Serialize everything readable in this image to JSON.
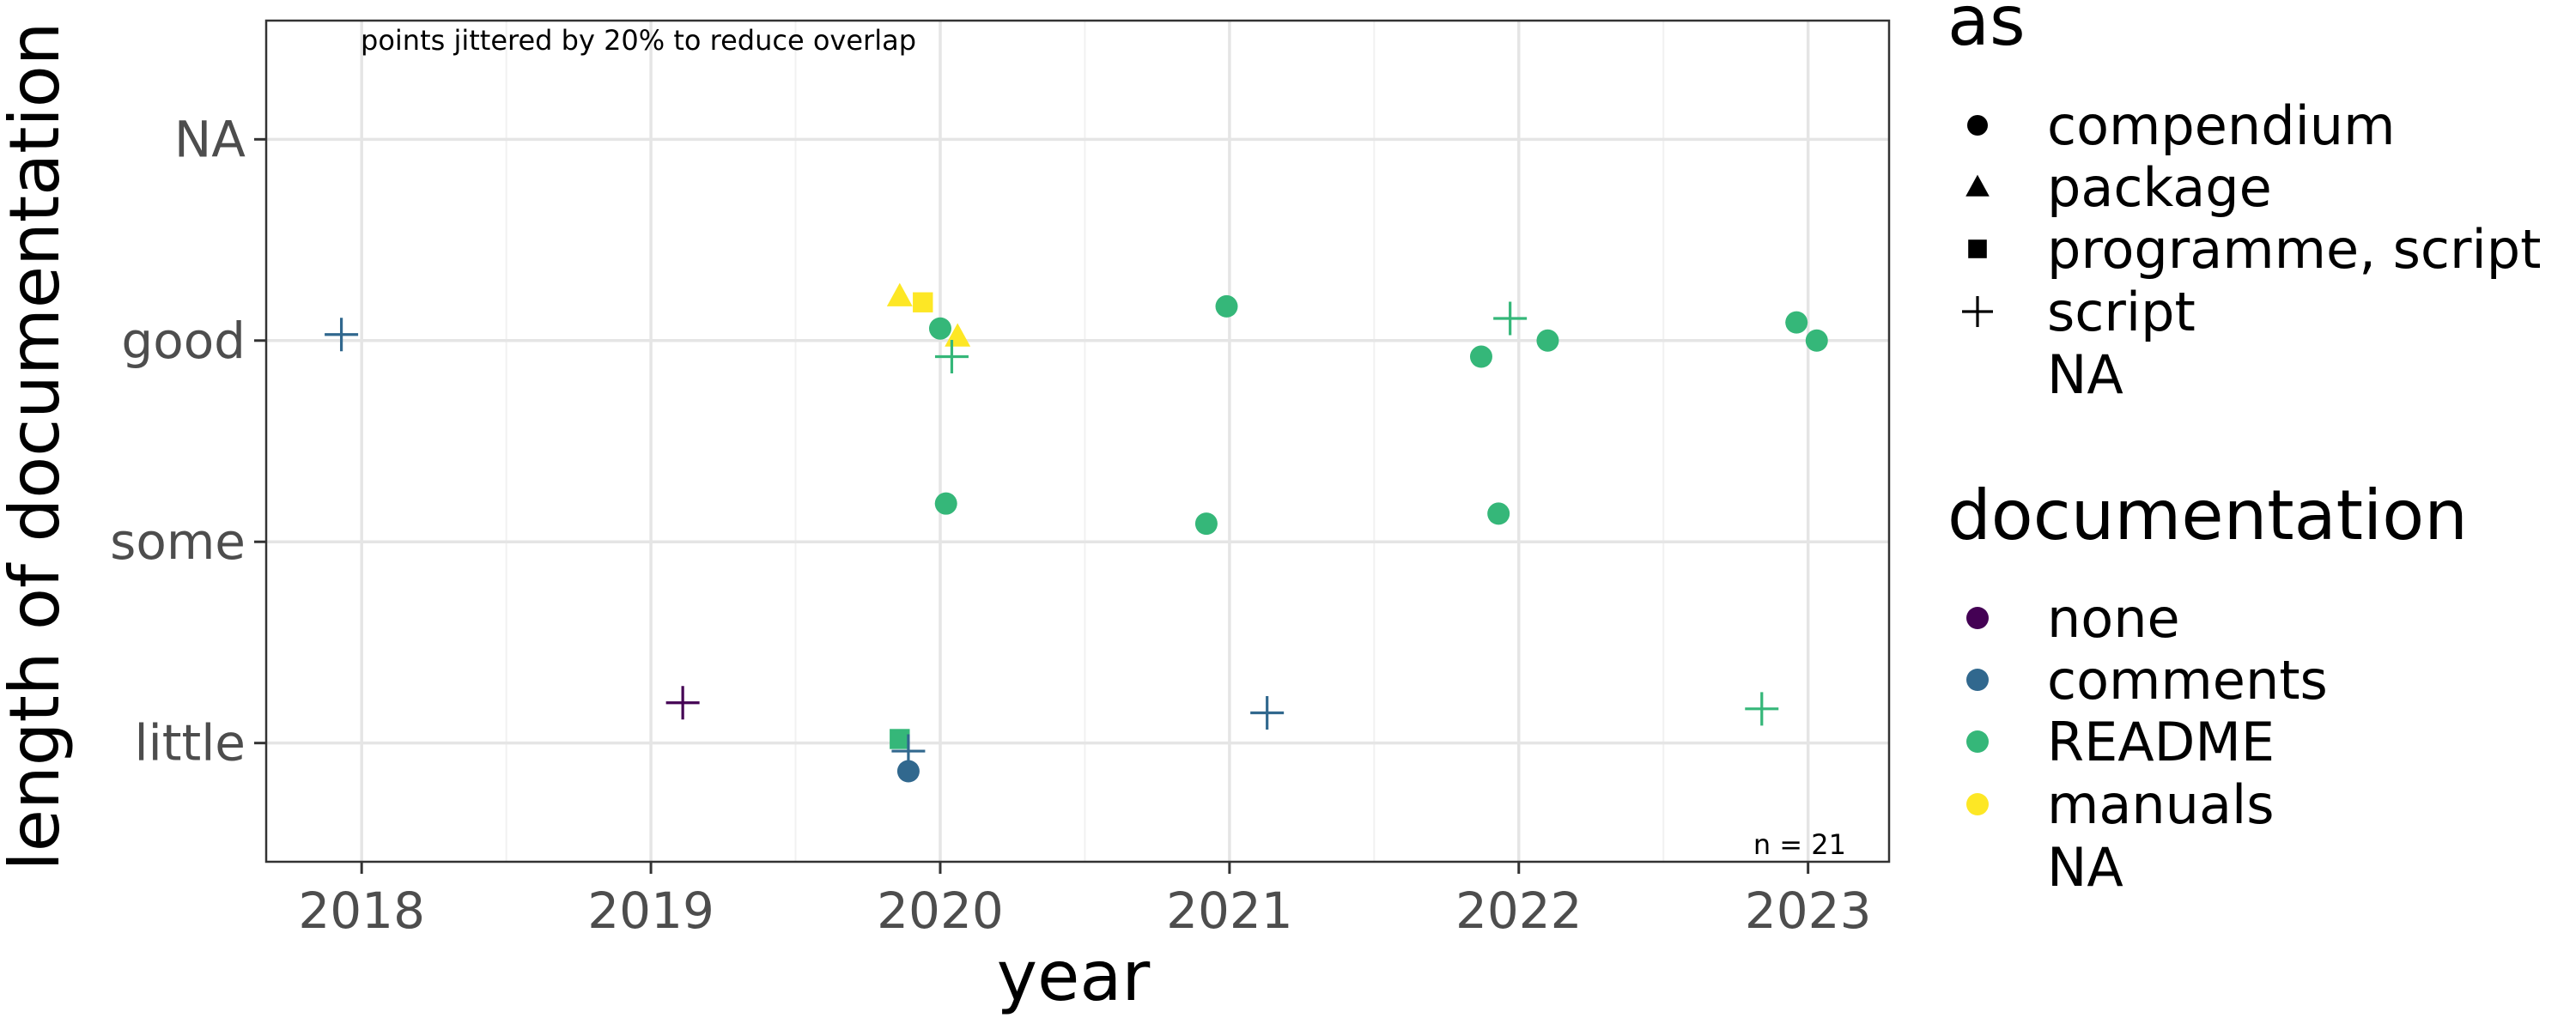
{
  "chart_data": {
    "type": "scatter",
    "xlabel": "year",
    "ylabel": "length of documentation",
    "x_ticks": [
      "2018",
      "2019",
      "2020",
      "2021",
      "2022",
      "2023"
    ],
    "xlim": [
      2017.67,
      2023.28
    ],
    "y_categories": [
      "little",
      "some",
      "good",
      "NA"
    ],
    "ylim": [
      0.41,
      4.59
    ],
    "grid": true,
    "annotations": {
      "jitter_note": "points jittered by 20% to reduce overlap",
      "n_label": "n = 21"
    },
    "legends": [
      {
        "title": "as",
        "placement": "right-top",
        "entries": [
          {
            "label": "compendium",
            "shape": "circle"
          },
          {
            "label": "package",
            "shape": "triangle"
          },
          {
            "label": "programme, script",
            "shape": "square"
          },
          {
            "label": "script",
            "shape": "plus"
          },
          {
            "label": "NA",
            "shape": "none"
          }
        ]
      },
      {
        "title": "documentation",
        "placement": "right-bottom",
        "entries": [
          {
            "label": "none",
            "color": "#440154"
          },
          {
            "label": "comments",
            "color": "#31688E"
          },
          {
            "label": "README",
            "color": "#35B779"
          },
          {
            "label": "manuals",
            "color": "#FDE725"
          },
          {
            "label": "NA",
            "color": ""
          }
        ]
      }
    ],
    "points": [
      {
        "x": 2017.93,
        "y": 3.03,
        "as": "script",
        "documentation": "comments"
      },
      {
        "x": 2019.11,
        "y": 1.2,
        "as": "script",
        "documentation": "none"
      },
      {
        "x": 2019.86,
        "y": 3.22,
        "as": "package",
        "documentation": "manuals"
      },
      {
        "x": 2019.94,
        "y": 3.19,
        "as": "programme, script",
        "documentation": "manuals"
      },
      {
        "x": 2020.06,
        "y": 3.02,
        "as": "package",
        "documentation": "manuals"
      },
      {
        "x": 2020.0,
        "y": 3.06,
        "as": "compendium",
        "documentation": "README"
      },
      {
        "x": 2020.04,
        "y": 2.92,
        "as": "script",
        "documentation": "README"
      },
      {
        "x": 2020.02,
        "y": 2.19,
        "as": "compendium",
        "documentation": "README"
      },
      {
        "x": 2019.86,
        "y": 1.02,
        "as": "programme, script",
        "documentation": "README"
      },
      {
        "x": 2019.89,
        "y": 0.96,
        "as": "script",
        "documentation": "comments"
      },
      {
        "x": 2019.89,
        "y": 0.86,
        "as": "compendium",
        "documentation": "comments"
      },
      {
        "x": 2020.99,
        "y": 3.17,
        "as": "compendium",
        "documentation": "README"
      },
      {
        "x": 2020.92,
        "y": 2.09,
        "as": "compendium",
        "documentation": "README"
      },
      {
        "x": 2021.13,
        "y": 1.15,
        "as": "script",
        "documentation": "comments"
      },
      {
        "x": 2021.87,
        "y": 2.92,
        "as": "compendium",
        "documentation": "README"
      },
      {
        "x": 2021.97,
        "y": 3.11,
        "as": "script",
        "documentation": "README"
      },
      {
        "x": 2022.1,
        "y": 3.0,
        "as": "compendium",
        "documentation": "README"
      },
      {
        "x": 2021.93,
        "y": 2.14,
        "as": "compendium",
        "documentation": "README"
      },
      {
        "x": 2022.96,
        "y": 3.09,
        "as": "compendium",
        "documentation": "README"
      },
      {
        "x": 2023.03,
        "y": 3.0,
        "as": "compendium",
        "documentation": "README"
      },
      {
        "x": 2022.84,
        "y": 1.17,
        "as": "script",
        "documentation": "README"
      }
    ]
  }
}
